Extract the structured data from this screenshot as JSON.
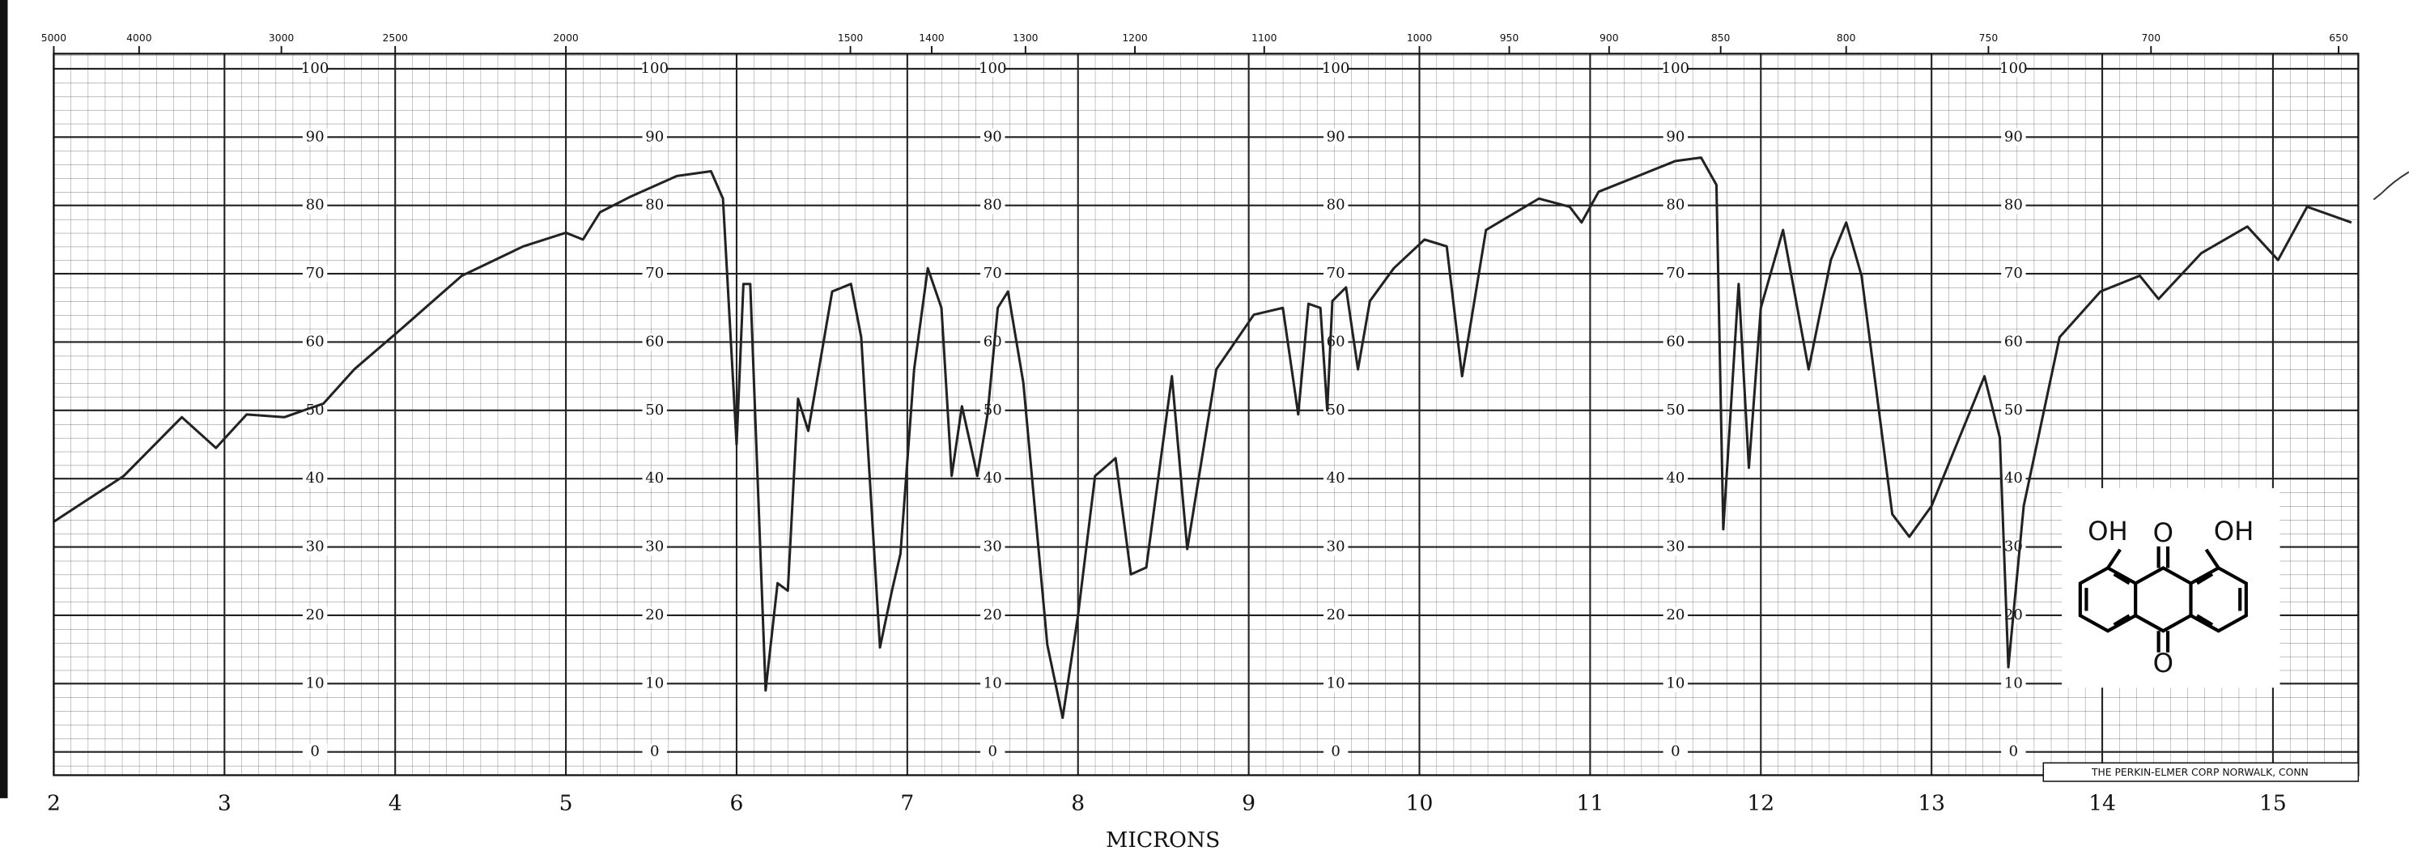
{
  "chart_data": {
    "type": "line",
    "x_label": "MICRONS",
    "footer": "THE PERKIN-ELMER CORP NORWALK, CONN",
    "structure_labels": [
      "OH",
      "O",
      "OH",
      "O"
    ],
    "color": "#222222",
    "grid": true,
    "xlim": [
      2,
      15.5
    ],
    "xticks": [
      2,
      3,
      4,
      5,
      6,
      7,
      8,
      9,
      10,
      11,
      12,
      13,
      14,
      15
    ],
    "ylim": [
      -3.4,
      102.2
    ],
    "yticks": [
      0,
      10,
      20,
      30,
      40,
      50,
      60,
      70,
      80,
      90,
      100
    ],
    "wavenumber_ticks": [
      5000,
      4000,
      3000,
      2500,
      2000,
      1500,
      1400,
      1300,
      1200,
      1100,
      1000,
      950,
      900,
      850,
      800,
      750,
      700,
      650
    ],
    "x": [
      2.0,
      2.41,
      2.75,
      2.95,
      3.13,
      3.35,
      3.58,
      3.76,
      4.03,
      4.39,
      4.75,
      5.0,
      5.1,
      5.2,
      5.38,
      5.65,
      5.85,
      5.92,
      6.0,
      6.04,
      6.08,
      6.17,
      6.24,
      6.3,
      6.36,
      6.42,
      6.56,
      6.67,
      6.73,
      6.84,
      6.91,
      6.96,
      7.04,
      7.12,
      7.2,
      7.26,
      7.32,
      7.37,
      7.41,
      7.47,
      7.53,
      7.59,
      7.68,
      7.82,
      7.91,
      8.0,
      8.1,
      8.22,
      8.31,
      8.4,
      8.55,
      8.64,
      8.81,
      9.03,
      9.2,
      9.29,
      9.35,
      9.42,
      9.46,
      9.49,
      9.57,
      9.64,
      9.71,
      9.85,
      10.03,
      10.16,
      10.25,
      10.39,
      10.7,
      10.88,
      10.95,
      11.05,
      11.5,
      11.65,
      11.74,
      11.78,
      11.87,
      11.93,
      12.0,
      12.13,
      12.28,
      12.41,
      12.5,
      12.59,
      12.77,
      12.87,
      13.0,
      13.31,
      13.4,
      13.45,
      13.54,
      13.75,
      13.99,
      14.22,
      14.33,
      14.58,
      14.85,
      15.03,
      15.2,
      15.46
    ],
    "values": [
      33.7,
      40.4,
      49,
      44.5,
      49.4,
      49,
      51,
      56,
      61.8,
      69.7,
      74,
      76,
      75,
      79,
      81.3,
      84.3,
      85,
      81,
      45,
      68.5,
      68.5,
      9,
      24.7,
      23.6,
      51.7,
      47,
      67.4,
      68.5,
      60.7,
      15.3,
      23.6,
      29,
      56,
      70.8,
      65,
      40.4,
      50.6,
      45,
      40.4,
      49.4,
      65,
      67.4,
      54,
      15.7,
      5,
      20,
      40.4,
      43,
      26,
      27,
      55,
      29.7,
      56,
      64,
      65,
      49.4,
      65.6,
      65,
      50,
      66,
      68,
      56,
      66,
      70.8,
      75,
      74,
      55,
      76.4,
      81,
      79.8,
      77.5,
      82,
      86.5,
      87,
      83,
      32.6,
      68.5,
      41.6,
      65,
      76.4,
      56,
      72,
      77.5,
      69.7,
      34.8,
      31.5,
      36,
      55,
      46,
      12.4,
      36,
      60.7,
      67.4,
      69.7,
      66.3,
      73,
      76.9,
      72,
      79.8,
      77.5
    ]
  }
}
